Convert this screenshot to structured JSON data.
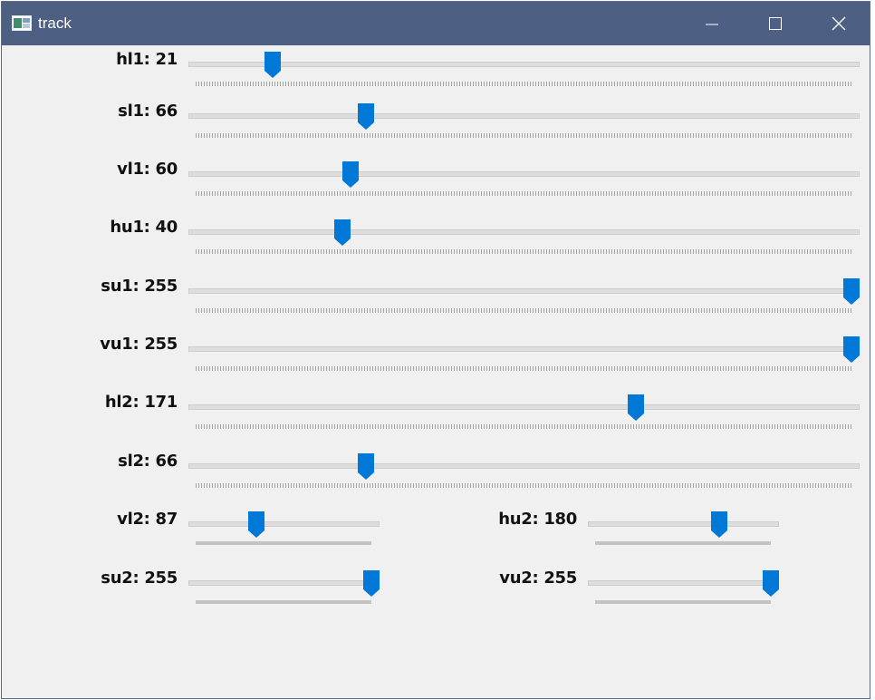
{
  "window": {
    "title": "track",
    "icon": "window-app-icon",
    "controls": [
      "minimize-icon",
      "maximize-icon",
      "close-icon"
    ]
  },
  "colors": {
    "titlebar": "#4d5f82",
    "thumb": "#0078d7",
    "track": "#dddddd",
    "background": "#f0f0f0"
  },
  "trackbars": [
    {
      "id": "hl1",
      "label": "hl1: 21",
      "value": 21,
      "max": 180
    },
    {
      "id": "sl1",
      "label": "sl1: 66",
      "value": 66,
      "max": 255
    },
    {
      "id": "vl1",
      "label": "vl1: 60",
      "value": 60,
      "max": 255
    },
    {
      "id": "hu1",
      "label": "hu1: 40",
      "value": 40,
      "max": 180
    },
    {
      "id": "su1",
      "label": "su1: 255",
      "value": 255,
      "max": 255
    },
    {
      "id": "vu1",
      "label": "vu1: 255",
      "value": 255,
      "max": 255
    },
    {
      "id": "hl2",
      "label": "hl2: 171",
      "value": 171,
      "max": 255
    },
    {
      "id": "sl2",
      "label": "sl2: 66",
      "value": 66,
      "max": 255
    },
    {
      "id": "vl2",
      "label": "vl2: 87",
      "value": 87,
      "max": 255
    },
    {
      "id": "hu2",
      "label": "hu2: 180",
      "value": 180,
      "max": 255
    },
    {
      "id": "su2",
      "label": "su2: 255",
      "value": 255,
      "max": 255
    },
    {
      "id": "vu2",
      "label": "vu2: 255",
      "value": 255,
      "max": 255
    }
  ]
}
